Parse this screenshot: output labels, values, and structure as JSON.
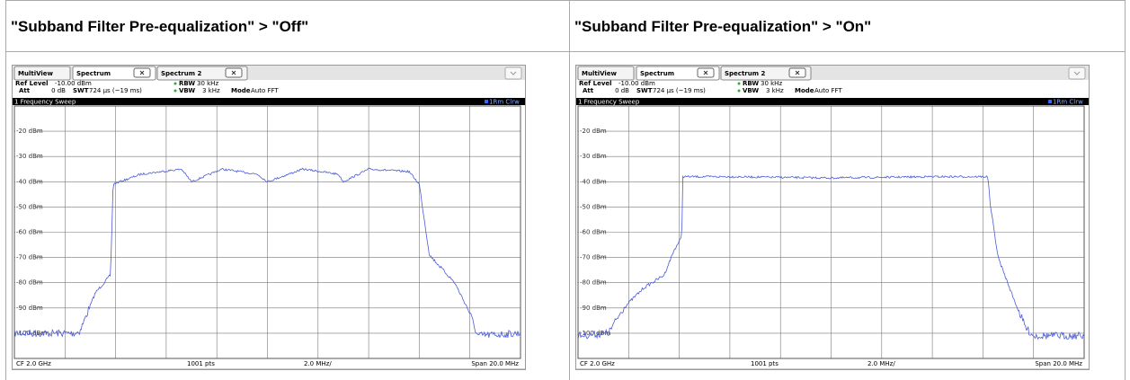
{
  "table": {
    "headers": [
      "\"Subband Filter Pre-equalization\" > \"Off\"",
      "\"Subband Filter Pre-equalization\" > \"On\""
    ]
  },
  "screenshots": [
    {
      "tabs": [
        "MultiView",
        "Spectrum",
        "Spectrum 2"
      ],
      "ref_level": "Ref Level",
      "ref_level_value": "-10.00 dBm",
      "att": "Att",
      "att_value": "0 dB",
      "swt": "SWT",
      "swt_value": "724 µs (~19 ms)",
      "rbw": "RBW",
      "rbw_value": "30 kHz",
      "vbw": "VBW",
      "vbw_value": "3 kHz",
      "mode": "Mode",
      "mode_value": "Auto FFT",
      "window": "1 Frequency Sweep",
      "trace": "1Rm Clrw",
      "y_labels": [
        "-20 dBm",
        "-30 dBm",
        "-40 dBm",
        "-50 dBm",
        "-60 dBm",
        "-70 dBm",
        "-80 dBm",
        "-90 dBm",
        "-100 dBm"
      ],
      "footer": [
        "CF 2.0 GHz",
        "1001 pts",
        "2.0 MHz/",
        "Span 20.0 MHz"
      ]
    },
    {
      "tabs": [
        "MultiView",
        "Spectrum",
        "Spectrum 2"
      ],
      "ref_level": "Ref Level",
      "ref_level_value": "-10.00 dBm",
      "att": "Att",
      "att_value": "0 dB",
      "swt": "SWT",
      "swt_value": "724 µs (~19 ms)",
      "rbw": "RBW",
      "rbw_value": "30 kHz",
      "vbw": "VBW",
      "vbw_value": "3 kHz",
      "mode": "Mode",
      "mode_value": "Auto FFT",
      "window": "1 Frequency Sweep",
      "trace": "1Rm Clrw",
      "y_labels": [
        "-20 dBm",
        "-30 dBm",
        "-40 dBm",
        "-50 dBm",
        "-60 dBm",
        "-70 dBm",
        "-80 dBm",
        "-90 dBm",
        "-100 dBm"
      ],
      "footer": [
        "CF 2.0 GHz",
        "1001 pts",
        "2.0 MHz/",
        "Span 20.0 MHz"
      ]
    }
  ]
}
